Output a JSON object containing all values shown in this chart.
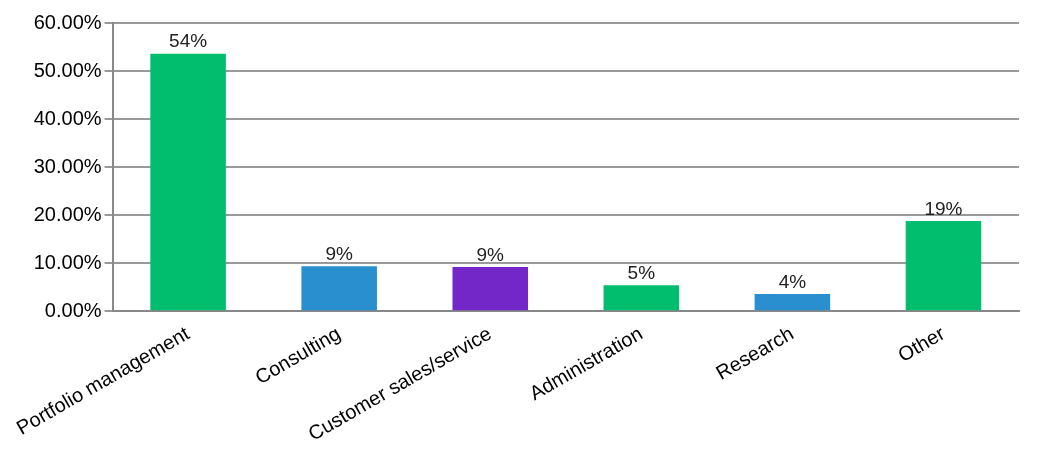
{
  "chart_data": {
    "type": "bar",
    "categories": [
      "Portfolio management",
      "Consulting",
      "Customer sales/service",
      "Administration",
      "Research",
      "Other"
    ],
    "values": [
      53.6,
      9.4,
      9.2,
      5.4,
      3.6,
      18.8
    ],
    "colors": [
      "#00be6e",
      "#2a8fce",
      "#7327c8",
      "#00be6e",
      "#2a8fce",
      "#00be6e"
    ],
    "value_labels": [
      "54%",
      "9%",
      "9%",
      "5%",
      "4%",
      "19%"
    ],
    "ylim": [
      0,
      60
    ],
    "yticks": [
      {
        "value": 0,
        "label": "0.00%"
      },
      {
        "value": 10,
        "label": "10.00%"
      },
      {
        "value": 20,
        "label": "20.00%"
      },
      {
        "value": 30,
        "label": "30.00%"
      },
      {
        "value": 40,
        "label": "40.00%"
      },
      {
        "value": 50,
        "label": "50.00%"
      },
      {
        "value": 60,
        "label": "60.00%"
      }
    ],
    "grid": "y",
    "legend": false
  }
}
